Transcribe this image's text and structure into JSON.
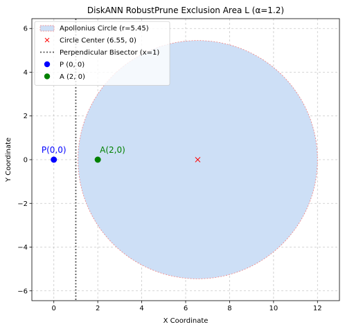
{
  "chart_data": {
    "type": "scatter",
    "title": "DiskANN RobustPrune Exclusion Area L (α=1.2)",
    "xlabel": "X Coordinate",
    "ylabel": "Y Coordinate",
    "xlim": [
      -1.0,
      13.0
    ],
    "ylim": [
      -6.45,
      6.45
    ],
    "xticks": [
      0,
      2,
      4,
      6,
      8,
      10,
      12
    ],
    "yticks": [
      -6,
      -4,
      -2,
      0,
      2,
      4,
      6
    ],
    "xtick_labels": [
      "0",
      "2",
      "4",
      "6",
      "8",
      "10",
      "12"
    ],
    "ytick_labels": [
      "−6",
      "−4",
      "−2",
      "0",
      "2",
      "4",
      "6"
    ],
    "grid": true,
    "legend_position": "top-left",
    "circle": {
      "center": [
        6.55,
        0
      ],
      "radius": 5.45,
      "fill": "#cddff6",
      "edge": "#f08080"
    },
    "bisector_x": 1,
    "points": [
      {
        "name": "P",
        "x": 0,
        "y": 0,
        "color": "#0000ff",
        "label": "P(0,0)"
      },
      {
        "name": "A",
        "x": 2,
        "y": 0,
        "color": "#008000",
        "label": "A(2,0)"
      }
    ],
    "center_marker": {
      "x": 6.55,
      "y": 0,
      "color": "#ff0000"
    },
    "legend": [
      {
        "key": "circle",
        "text": "Apollonius Circle (r=5.45)"
      },
      {
        "key": "center",
        "text": "Circle Center (6.55, 0)"
      },
      {
        "key": "bisector",
        "text": "Perpendicular Bisector (x=1)"
      },
      {
        "key": "P",
        "text": "P (0, 0)"
      },
      {
        "key": "A",
        "text": "A (2, 0)"
      }
    ]
  }
}
